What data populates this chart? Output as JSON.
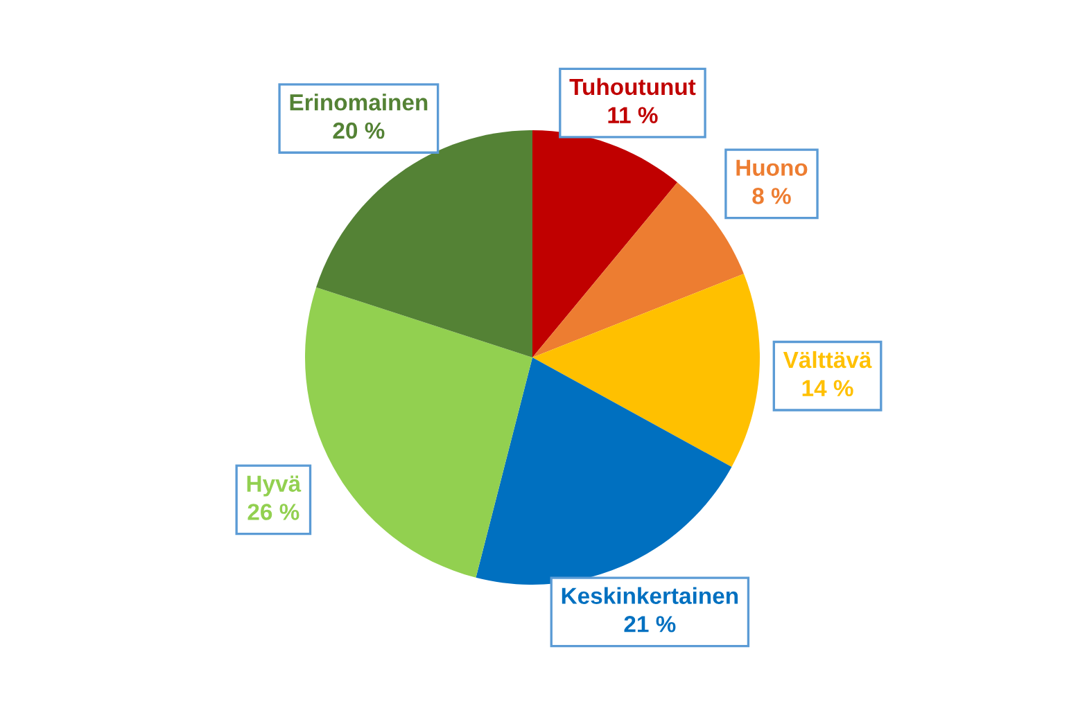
{
  "chart_data": {
    "type": "pie",
    "categories": [
      "Tuhoutunut",
      "Huono",
      "Välttävä",
      "Keskinkertainen",
      "Hyvä",
      "Erinomainen"
    ],
    "values": [
      11,
      8,
      14,
      21,
      26,
      20
    ],
    "colors": [
      "#c00000",
      "#ed7d31",
      "#ffc000",
      "#0070c0",
      "#92d050",
      "#548235"
    ],
    "value_labels": [
      "11 %",
      "8 %",
      "14 %",
      "21 %",
      "26 %",
      "20 %"
    ],
    "legend": false
  }
}
